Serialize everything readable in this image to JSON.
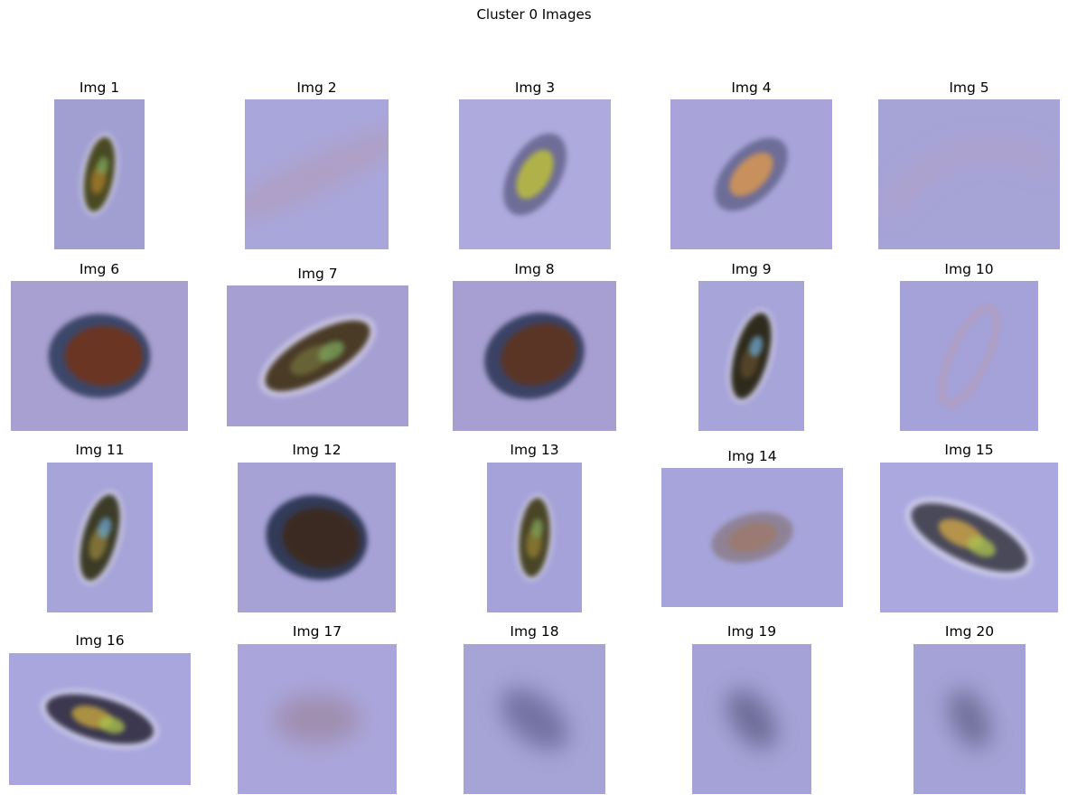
{
  "figure": {
    "title": "Cluster 0 Images",
    "panels": [
      {
        "title": "Img 1",
        "bg": "#a19fd2",
        "kind": "diatom",
        "colors": [
          "#4a4a22",
          "#a0782c",
          "#7aa05a"
        ],
        "angle": -80
      },
      {
        "title": "Img 2",
        "bg": "#a9a6db",
        "kind": "streak",
        "colors": [
          "#b49ab0"
        ],
        "angle": -25
      },
      {
        "title": "Img 3",
        "bg": "#aeaade",
        "kind": "blob",
        "colors": [
          "#b0b24a",
          "#5e5e86"
        ],
        "angle": -60
      },
      {
        "title": "Img 4",
        "bg": "#a8a4da",
        "kind": "blob",
        "colors": [
          "#c8905c",
          "#5e6088"
        ],
        "angle": -45
      },
      {
        "title": "Img 5",
        "bg": "#a6a3d7",
        "kind": "arc",
        "colors": [
          "#b4a2c4"
        ],
        "angle": 0
      },
      {
        "title": "Img 6",
        "bg": "#a8a0d0",
        "kind": "oval",
        "colors": [
          "#6a3624",
          "#3c466a"
        ],
        "angle": 0
      },
      {
        "title": "Img 7",
        "bg": "#a6a0d2",
        "kind": "diatom",
        "colors": [
          "#4a3a26",
          "#6e6a3a",
          "#7aa05a"
        ],
        "angle": -30
      },
      {
        "title": "Img 8",
        "bg": "#a79fd1",
        "kind": "oval",
        "colors": [
          "#5a3426",
          "#3a4266"
        ],
        "angle": -20
      },
      {
        "title": "Img 9",
        "bg": "#a6a4d8",
        "kind": "diatom",
        "colors": [
          "#2e2a1e",
          "#5a4a2a",
          "#6aa0c8"
        ],
        "angle": -75
      },
      {
        "title": "Img 10",
        "bg": "#a4a2d8",
        "kind": "ring",
        "colors": [
          "#b89cb8"
        ],
        "angle": -65
      },
      {
        "title": "Img 11",
        "bg": "#a6a4d8",
        "kind": "diatom",
        "colors": [
          "#3a3a28",
          "#8a7a3a",
          "#6aa0c8"
        ],
        "angle": -75
      },
      {
        "title": "Img 12",
        "bg": "#a6a2d6",
        "kind": "oval",
        "colors": [
          "#3a2a22",
          "#323a58"
        ],
        "angle": 10
      },
      {
        "title": "Img 13",
        "bg": "#a4a2d8",
        "kind": "diatom",
        "colors": [
          "#4a4426",
          "#8a7a32",
          "#7aa05a"
        ],
        "angle": -85
      },
      {
        "title": "Img 14",
        "bg": "#a6a4da",
        "kind": "blob",
        "colors": [
          "#9a7a72",
          "#8a7a86"
        ],
        "angle": -15
      },
      {
        "title": "Img 15",
        "bg": "#aaa8de",
        "kind": "diatom",
        "colors": [
          "#4a4a5a",
          "#c8a048",
          "#a8c050"
        ],
        "angle": 25
      },
      {
        "title": "Img 16",
        "bg": "#a8a6dc",
        "kind": "diatom",
        "colors": [
          "#3a3850",
          "#c0a040",
          "#a8c050"
        ],
        "angle": 15
      },
      {
        "title": "Img 17",
        "bg": "#aaa5da",
        "kind": "blur",
        "colors": [
          "#9e8aa8"
        ],
        "angle": 0
      },
      {
        "title": "Img 18",
        "bg": "#a6a3d6",
        "kind": "blur",
        "colors": [
          "#6c6a9a"
        ],
        "angle": 40
      },
      {
        "title": "Img 19",
        "bg": "#a4a2d6",
        "kind": "blur",
        "colors": [
          "#66648e"
        ],
        "angle": 55
      },
      {
        "title": "Img 20",
        "bg": "#a4a2d6",
        "kind": "blur",
        "colors": [
          "#6a6890"
        ],
        "angle": 65
      }
    ]
  }
}
